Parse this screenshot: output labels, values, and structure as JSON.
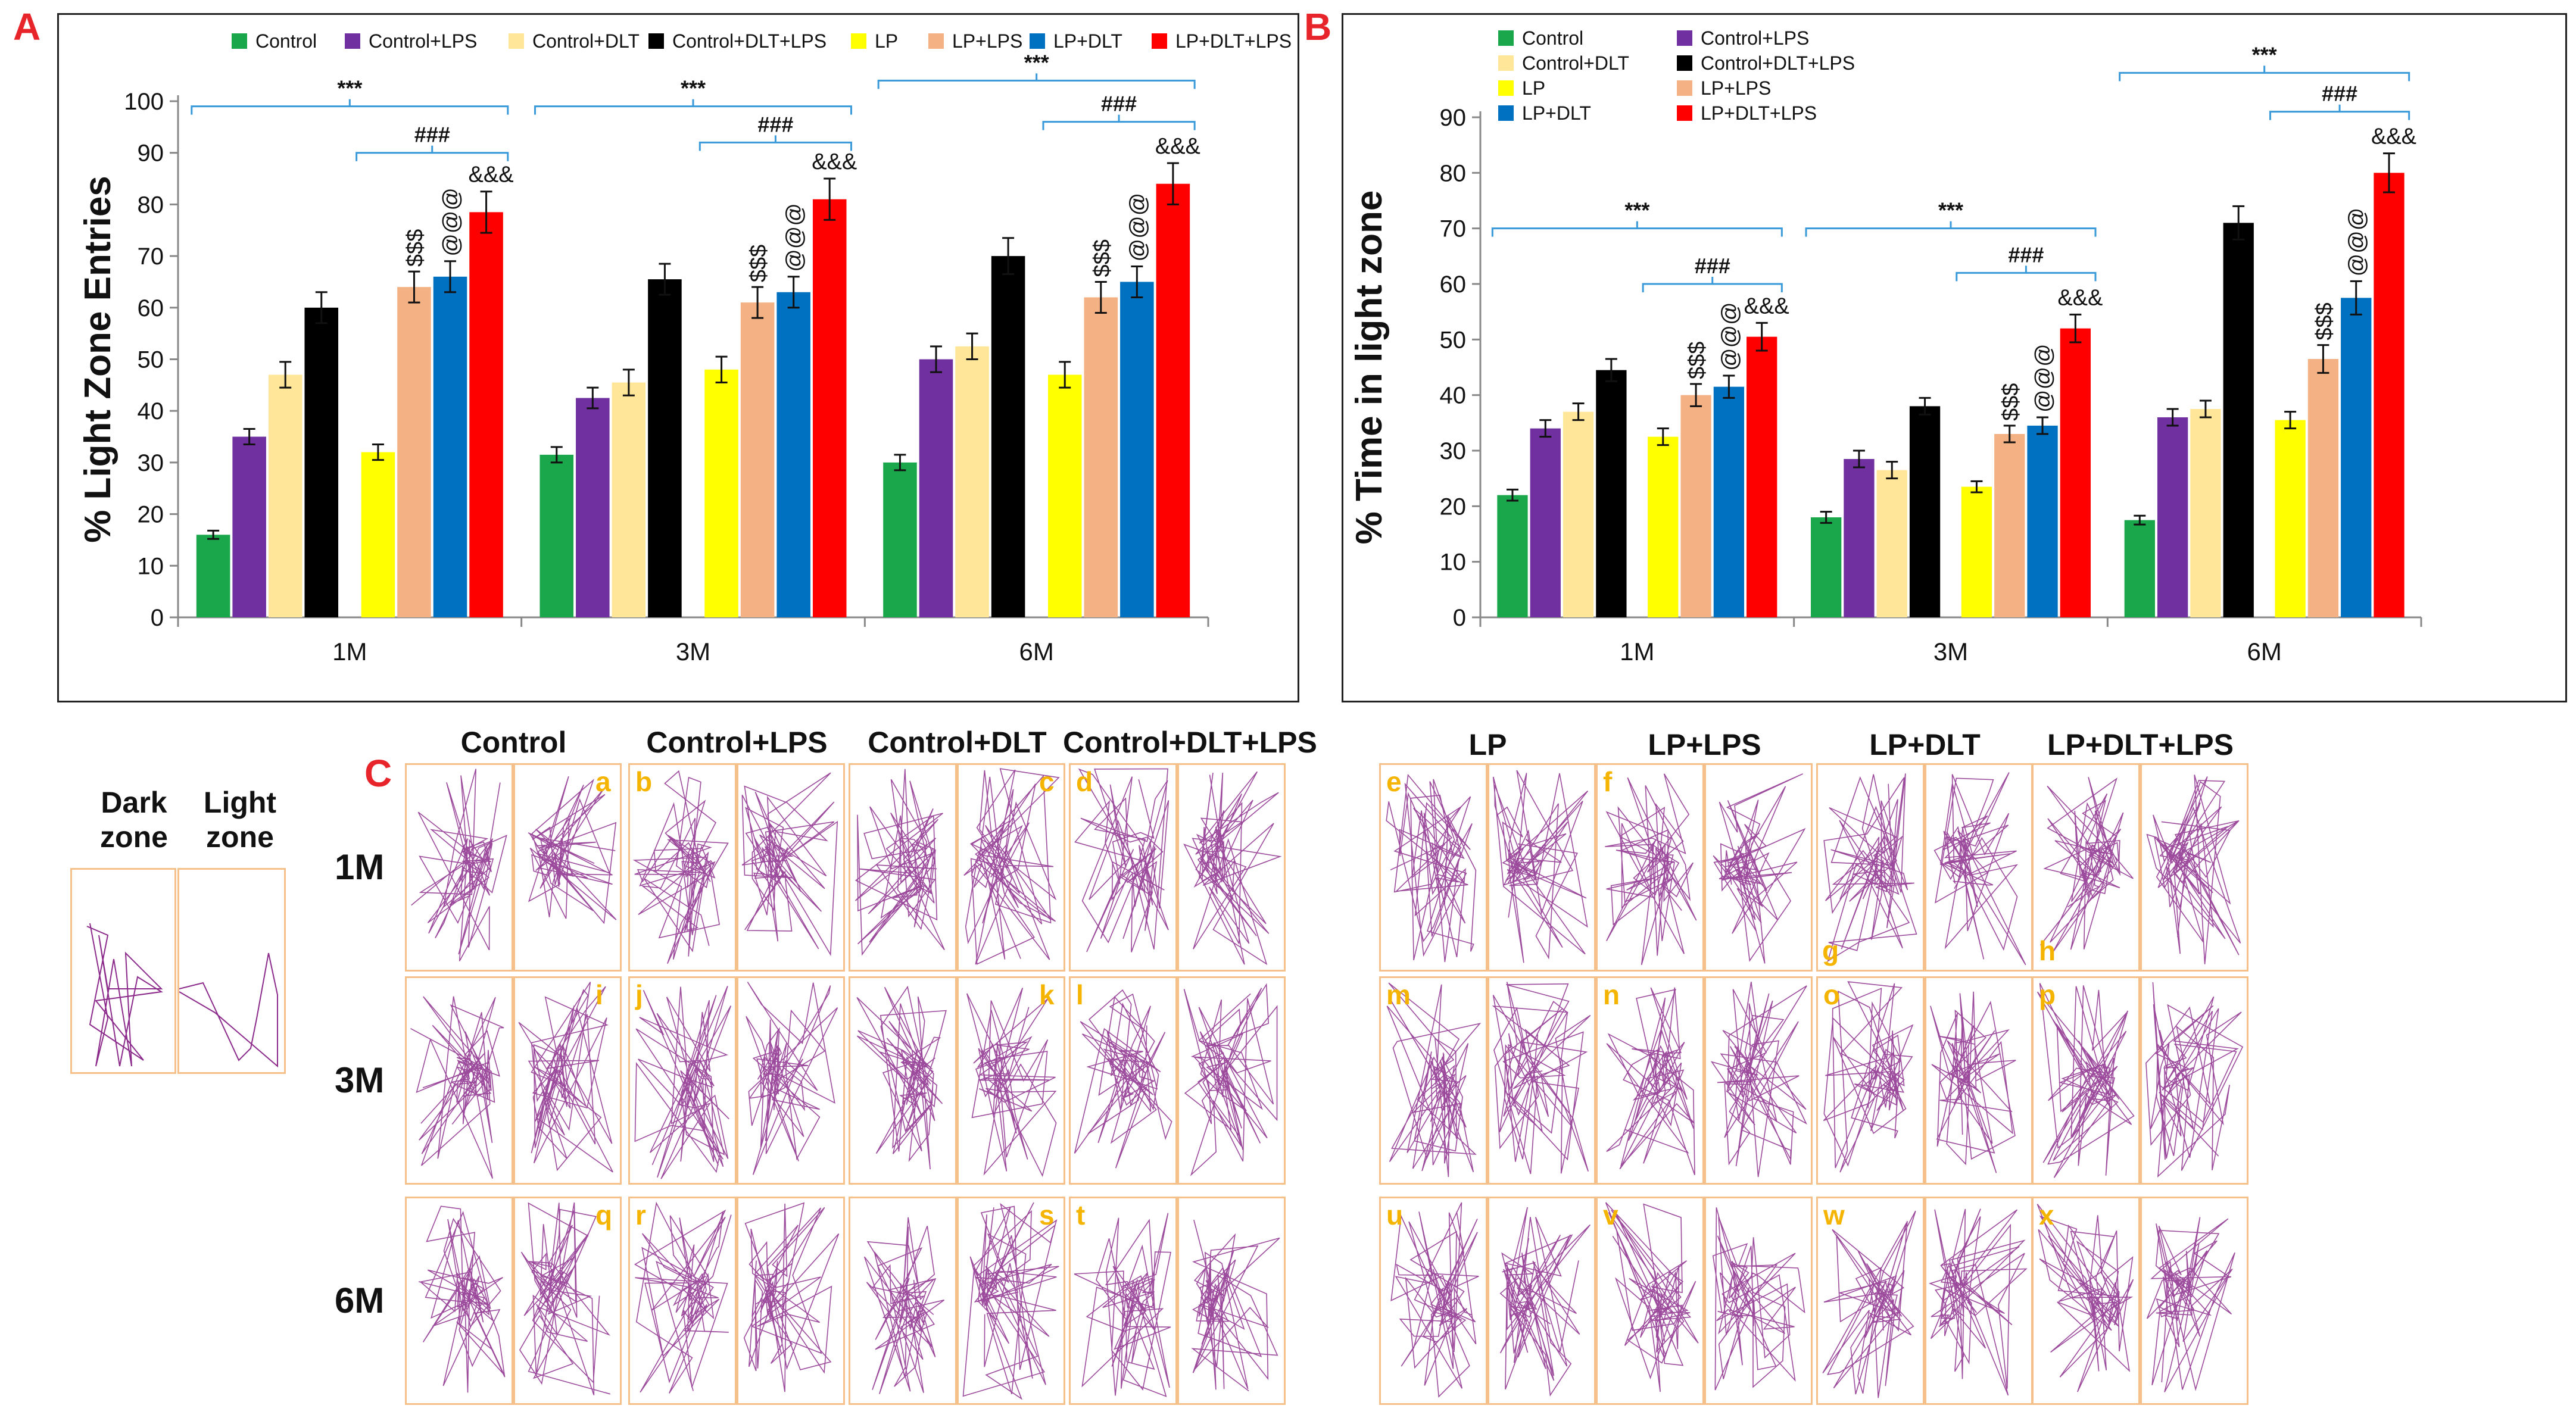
{
  "panels": {
    "a": "A",
    "b": "B",
    "c": "C"
  },
  "chart_data": [
    {
      "type": "bar",
      "title": "",
      "xlabel": "",
      "ylabel": "% Light Zone Entries",
      "ylim": [
        0,
        100
      ],
      "yticks": [
        0,
        10,
        20,
        30,
        40,
        50,
        60,
        70,
        80,
        90,
        100
      ],
      "categories": [
        "1M",
        "3M",
        "6M"
      ],
      "legend_position": "top",
      "series": [
        {
          "name": "Control",
          "color": "#1aa64a",
          "values": [
            16,
            31.5,
            30
          ],
          "errors": [
            0.8,
            1.5,
            1.5
          ]
        },
        {
          "name": "Control+LPS",
          "color": "#7030a0",
          "values": [
            35,
            42.5,
            50
          ],
          "errors": [
            1.5,
            2,
            2.5
          ]
        },
        {
          "name": "Control+DLT",
          "color": "#ffe699",
          "values": [
            47,
            45.5,
            52.5
          ],
          "errors": [
            2.5,
            2.5,
            2.5
          ]
        },
        {
          "name": "Control+DLT+LPS",
          "color": "#000000",
          "values": [
            60,
            65.5,
            70
          ],
          "errors": [
            3,
            3,
            3.5
          ]
        },
        {
          "name": "LP",
          "color": "#ffff00",
          "values": [
            32,
            48,
            47
          ],
          "errors": [
            1.5,
            2.5,
            2.5
          ]
        },
        {
          "name": "LP+LPS",
          "color": "#f4b183",
          "values": [
            64,
            61,
            62
          ],
          "errors": [
            3,
            3,
            3
          ]
        },
        {
          "name": "LP+DLT",
          "color": "#0070c0",
          "values": [
            66,
            63,
            65
          ],
          "errors": [
            3,
            3,
            3
          ]
        },
        {
          "name": "LP+DLT+LPS",
          "color": "#ff0000",
          "values": [
            78.5,
            81,
            84
          ],
          "errors": [
            4,
            4,
            4
          ]
        }
      ],
      "bar_labels": [
        {
          "category": 0,
          "series": 5,
          "text": "$$$"
        },
        {
          "category": 0,
          "series": 6,
          "text": "@@@"
        },
        {
          "category": 0,
          "series": 7,
          "text": "&&&"
        },
        {
          "category": 1,
          "series": 5,
          "text": "$$$"
        },
        {
          "category": 1,
          "series": 6,
          "text": "@@@"
        },
        {
          "category": 1,
          "series": 7,
          "text": "&&&"
        },
        {
          "category": 2,
          "series": 5,
          "text": "$$$"
        },
        {
          "category": 2,
          "series": 6,
          "text": "@@@"
        },
        {
          "category": 2,
          "series": 7,
          "text": "&&&"
        }
      ],
      "brackets": [
        {
          "category": 0,
          "from_series": 0,
          "to_series": 7,
          "y": 99,
          "text": "***"
        },
        {
          "category": 0,
          "from_series": 4,
          "to_series": 7,
          "y": 90,
          "text": "###"
        },
        {
          "category": 1,
          "from_series": 0,
          "to_series": 7,
          "y": 99,
          "text": "***"
        },
        {
          "category": 1,
          "from_series": 4,
          "to_series": 7,
          "y": 92,
          "text": "###"
        },
        {
          "category": 2,
          "from_series": 0,
          "to_series": 7,
          "y": 104,
          "text": "***"
        },
        {
          "category": 2,
          "from_series": 4,
          "to_series": 7,
          "y": 96,
          "text": "###"
        }
      ]
    },
    {
      "type": "bar",
      "title": "",
      "xlabel": "",
      "ylabel": "% Time in light zone",
      "ylim": [
        0,
        90
      ],
      "yticks": [
        0,
        10,
        20,
        30,
        40,
        50,
        60,
        70,
        80,
        90
      ],
      "categories": [
        "1M",
        "3M",
        "6M"
      ],
      "legend_position": "top-left",
      "series": [
        {
          "name": "Control",
          "color": "#1aa64a",
          "values": [
            22,
            18,
            17.5
          ],
          "errors": [
            1,
            1,
            0.8
          ]
        },
        {
          "name": "Control+LPS",
          "color": "#7030a0",
          "values": [
            34,
            28.5,
            36
          ],
          "errors": [
            1.5,
            1.5,
            1.5
          ]
        },
        {
          "name": "Control+DLT",
          "color": "#ffe699",
          "values": [
            37,
            26.5,
            37.5
          ],
          "errors": [
            1.5,
            1.5,
            1.5
          ]
        },
        {
          "name": "Control+DLT+LPS",
          "color": "#000000",
          "values": [
            44.5,
            38,
            71
          ],
          "errors": [
            2,
            1.5,
            3
          ]
        },
        {
          "name": "LP",
          "color": "#ffff00",
          "values": [
            32.5,
            23.5,
            35.5
          ],
          "errors": [
            1.5,
            1,
            1.5
          ]
        },
        {
          "name": "LP+LPS",
          "color": "#f4b183",
          "values": [
            40,
            33,
            46.5
          ],
          "errors": [
            2,
            1.5,
            2.5
          ]
        },
        {
          "name": "LP+DLT",
          "color": "#0070c0",
          "values": [
            41.5,
            34.5,
            57.5
          ],
          "errors": [
            2,
            1.5,
            3
          ]
        },
        {
          "name": "LP+DLT+LPS",
          "color": "#ff0000",
          "values": [
            50.5,
            52,
            80
          ],
          "errors": [
            2.5,
            2.5,
            3.5
          ]
        }
      ],
      "bar_labels": [
        {
          "category": 0,
          "series": 5,
          "text": "$$$"
        },
        {
          "category": 0,
          "series": 6,
          "text": "@@@"
        },
        {
          "category": 0,
          "series": 7,
          "text": "&&&"
        },
        {
          "category": 1,
          "series": 5,
          "text": "$$$"
        },
        {
          "category": 1,
          "series": 6,
          "text": "@@@"
        },
        {
          "category": 1,
          "series": 7,
          "text": "&&&"
        },
        {
          "category": 2,
          "series": 5,
          "text": "$$$"
        },
        {
          "category": 2,
          "series": 6,
          "text": "@@@"
        },
        {
          "category": 2,
          "series": 7,
          "text": "&&&"
        }
      ],
      "brackets": [
        {
          "category": 0,
          "from_series": 0,
          "to_series": 7,
          "y": 70,
          "text": "***"
        },
        {
          "category": 0,
          "from_series": 4,
          "to_series": 7,
          "y": 60,
          "text": "###"
        },
        {
          "category": 1,
          "from_series": 0,
          "to_series": 7,
          "y": 70,
          "text": "***"
        },
        {
          "category": 1,
          "from_series": 4,
          "to_series": 7,
          "y": 62,
          "text": "###"
        },
        {
          "category": 2,
          "from_series": 0,
          "to_series": 7,
          "y": 98,
          "text": "***"
        },
        {
          "category": 2,
          "from_series": 4,
          "to_series": 7,
          "y": 91,
          "text": "###"
        }
      ]
    }
  ],
  "tracking": {
    "zone_labels": {
      "dark": "Dark zone",
      "light": "Light zone"
    },
    "rows": [
      "1M",
      "3M",
      "6M"
    ],
    "groups_left": [
      "Control",
      "Control+LPS",
      "Control+DLT",
      "Control+DLT+LPS"
    ],
    "groups_right": [
      "LP",
      "LP+LPS",
      "LP+DLT",
      "LP+DLT+LPS"
    ],
    "cell_letters": [
      [
        "a",
        "b",
        "c",
        "d",
        "e",
        "f",
        "g",
        "h"
      ],
      [
        "i",
        "j",
        "k",
        "l",
        "m",
        "n",
        "o",
        "p"
      ],
      [
        "q",
        "r",
        "s",
        "t",
        "u",
        "v",
        "w",
        "x"
      ]
    ],
    "path_color": "#8b2a8b"
  }
}
